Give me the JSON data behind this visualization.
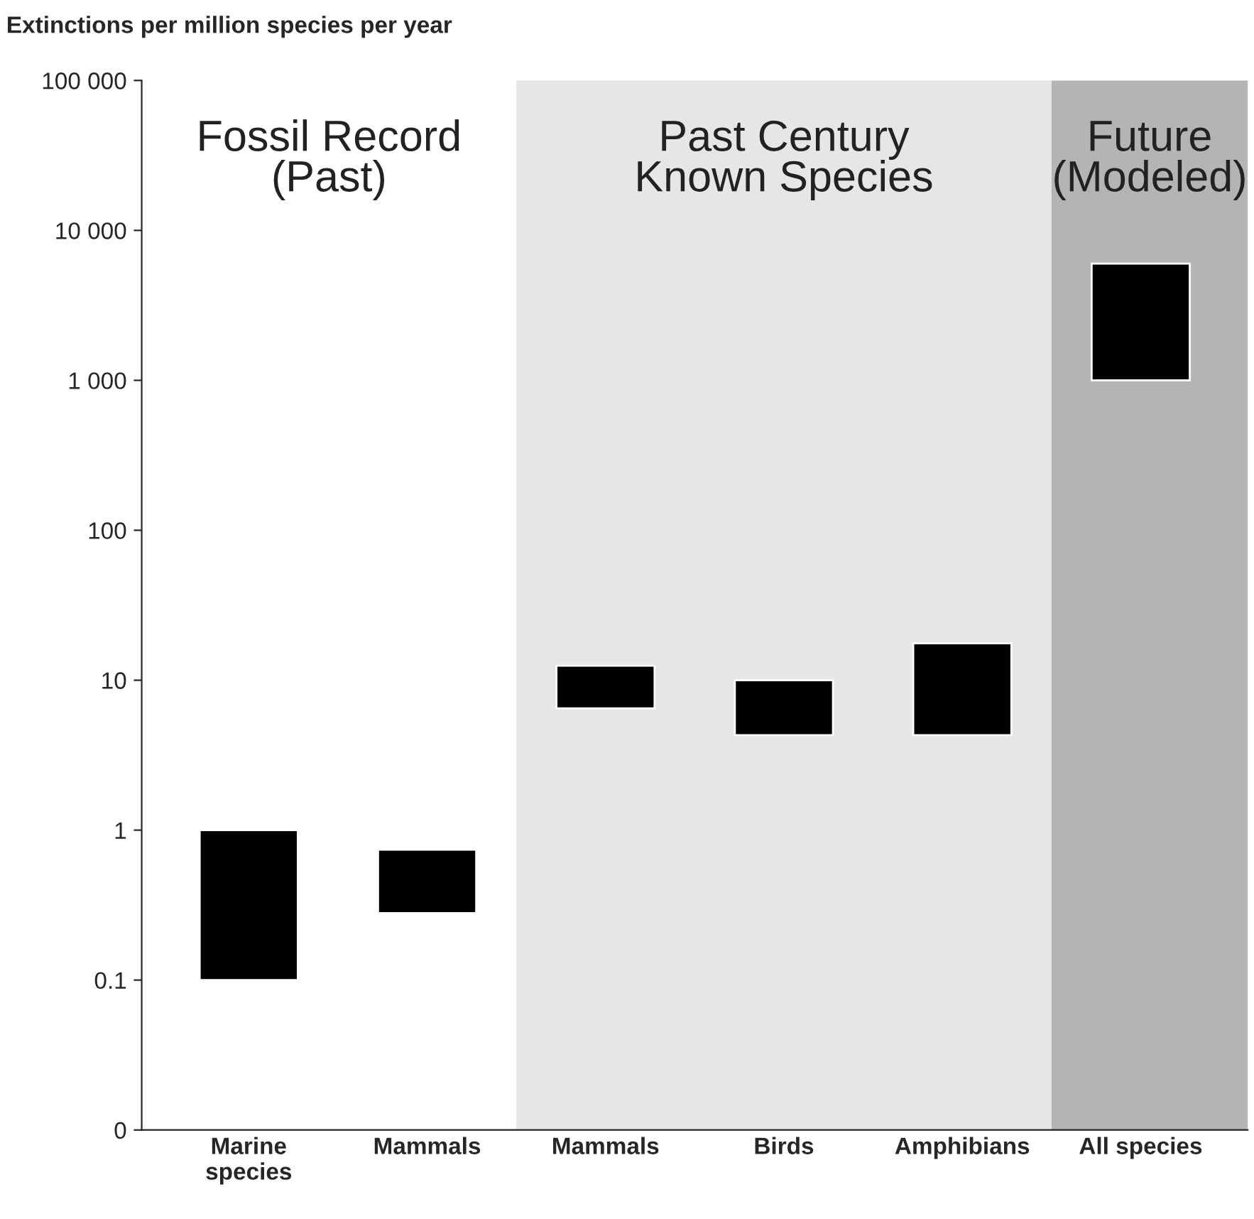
{
  "chart_data": {
    "type": "bar",
    "ylabel": "Extinctions per million species per year",
    "categories": [
      "Marine\nspecies",
      "Mammals",
      "Mammals",
      "Birds",
      "Amphibians",
      "All species"
    ],
    "base": [
      0.1,
      0.28,
      6.5,
      4.3,
      4.3,
      1000
    ],
    "values": [
      0.9,
      0.46,
      6,
      5.7,
      13.3,
      5000
    ],
    "color": "#000000",
    "log": true,
    "ylim": [
      0.01,
      100000
    ],
    "yticks": [
      {
        "value": 0.01,
        "label": "0"
      },
      0.1,
      1,
      10,
      100,
      {
        "value": 1000,
        "label": "1 000"
      },
      {
        "value": 10000,
        "label": "10 000"
      },
      {
        "value": 100000,
        "label": "100 000"
      }
    ],
    "annotations": [
      "Fossil Record\n(Past)",
      "Future\n(Modeled)"
    ],
    "bands": [
      {
        "axis": "x",
        "from": "Mammals",
        "to": "Amphibians",
        "label": "Past Century\nKnown Species",
        "color": "#e6e6e6"
      }
    ]
  }
}
